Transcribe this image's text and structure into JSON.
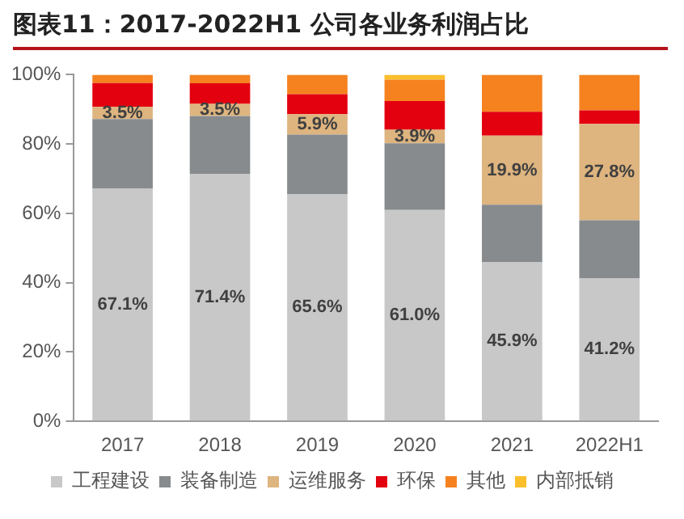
{
  "chart_data": {
    "type": "bar",
    "title": "图表11：2017-2022H1 公司各业务利润占比",
    "stacked": true,
    "categories": [
      "2017",
      "2018",
      "2019",
      "2020",
      "2021",
      "2022H1"
    ],
    "series": [
      {
        "name": "工程建设",
        "color": "#c8c8c8",
        "values": [
          67.1,
          71.4,
          65.6,
          61.0,
          45.9,
          41.2
        ],
        "value_labels": [
          "67.1%",
          "71.4%",
          "65.6%",
          "61.0%",
          "45.9%",
          "41.2%"
        ]
      },
      {
        "name": "装备制造",
        "color": "#878b8d",
        "values": [
          20.1,
          16.7,
          17.1,
          19.2,
          16.6,
          16.8
        ]
      },
      {
        "name": "运维服务",
        "color": "#deb47f",
        "values": [
          3.5,
          3.5,
          5.9,
          3.9,
          19.9,
          27.8
        ],
        "value_labels": [
          "3.5%",
          "3.5%",
          "5.9%",
          "3.9%",
          "19.9%",
          "27.8%"
        ]
      },
      {
        "name": "环保",
        "color": "#e3000f",
        "values": [
          6.9,
          5.9,
          5.8,
          8.3,
          6.9,
          3.9
        ]
      },
      {
        "name": "其他",
        "color": "#f5821f",
        "values": [
          2.4,
          2.5,
          5.6,
          6.2,
          10.7,
          10.3
        ]
      },
      {
        "name": "内部抵销",
        "color": "#fbbf2c",
        "values": [
          null,
          null,
          null,
          1.4,
          null,
          null
        ]
      }
    ],
    "ylim": [
      0,
      100
    ],
    "yticks": [
      {
        "value": 0,
        "label": "0%"
      },
      {
        "value": 20,
        "label": "20%"
      },
      {
        "value": 40,
        "label": "40%"
      },
      {
        "value": 60,
        "label": "60%"
      },
      {
        "value": 80,
        "label": "80%"
      },
      {
        "value": 100,
        "label": "100%"
      }
    ],
    "grid": false,
    "legend": "bottom"
  }
}
